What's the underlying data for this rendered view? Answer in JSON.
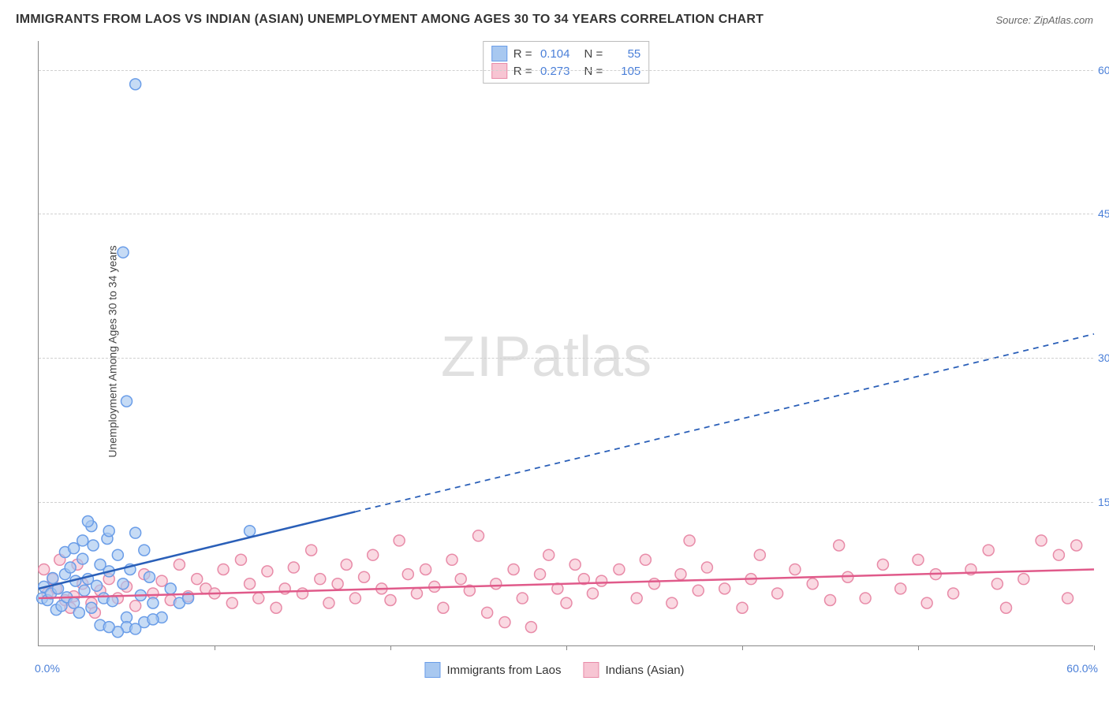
{
  "title": "IMMIGRANTS FROM LAOS VS INDIAN (ASIAN) UNEMPLOYMENT AMONG AGES 30 TO 34 YEARS CORRELATION CHART",
  "source": "Source: ZipAtlas.com",
  "ylabel": "Unemployment Among Ages 30 to 34 years",
  "watermark_a": "ZIP",
  "watermark_b": "atlas",
  "chart": {
    "type": "scatter",
    "xlim": [
      0,
      60
    ],
    "ylim": [
      0,
      63
    ],
    "xticks_major": [
      0,
      10,
      20,
      30,
      40,
      50,
      60
    ],
    "yticks": [
      15,
      30,
      45,
      60
    ],
    "xorigin_label": "0.0%",
    "xmax_label": "60.0%",
    "ytick_labels": [
      "15.0%",
      "30.0%",
      "45.0%",
      "60.0%"
    ],
    "grid_color": "#d0d0d0",
    "axis_color": "#888888",
    "background": "#ffffff",
    "marker_radius": 7,
    "marker_stroke_width": 1.5,
    "trend_line_width": 2.5,
    "series": [
      {
        "name": "Immigrants from Laos",
        "color_fill": "#a8c8f0",
        "color_stroke": "#6a9de8",
        "color_line": "#2a5fb8",
        "r": "0.104",
        "n": "55",
        "trend": {
          "x1": 0,
          "y1": 6.0,
          "x2_solid": 18,
          "y2_solid": 14.0,
          "x2": 60,
          "y2": 32.5
        },
        "points": [
          [
            0.2,
            5.0
          ],
          [
            0.3,
            6.2
          ],
          [
            0.5,
            4.8
          ],
          [
            0.7,
            5.5
          ],
          [
            0.8,
            7.1
          ],
          [
            1.0,
            3.8
          ],
          [
            1.1,
            6.0
          ],
          [
            1.3,
            4.2
          ],
          [
            1.5,
            7.5
          ],
          [
            1.6,
            5.1
          ],
          [
            1.8,
            8.2
          ],
          [
            2.0,
            4.5
          ],
          [
            2.1,
            6.8
          ],
          [
            2.3,
            3.5
          ],
          [
            2.5,
            9.1
          ],
          [
            2.6,
            5.8
          ],
          [
            2.8,
            7.0
          ],
          [
            3.0,
            4.0
          ],
          [
            3.1,
            10.5
          ],
          [
            3.3,
            6.3
          ],
          [
            3.5,
            8.5
          ],
          [
            3.7,
            5.0
          ],
          [
            3.9,
            11.2
          ],
          [
            4.0,
            7.8
          ],
          [
            4.2,
            4.7
          ],
          [
            4.5,
            9.5
          ],
          [
            4.8,
            6.5
          ],
          [
            5.0,
            3.0
          ],
          [
            5.2,
            8.0
          ],
          [
            5.5,
            11.8
          ],
          [
            5.8,
            5.3
          ],
          [
            6.0,
            10.0
          ],
          [
            6.3,
            7.2
          ],
          [
            6.5,
            4.5
          ],
          [
            3.0,
            12.5
          ],
          [
            2.5,
            11.0
          ],
          [
            4.0,
            12.0
          ],
          [
            1.5,
            9.8
          ],
          [
            2.0,
            10.2
          ],
          [
            2.8,
            13.0
          ],
          [
            5.0,
            2.0
          ],
          [
            6.0,
            2.5
          ],
          [
            7.0,
            3.0
          ],
          [
            4.5,
            1.5
          ],
          [
            3.5,
            2.2
          ],
          [
            5.5,
            1.8
          ],
          [
            6.5,
            2.8
          ],
          [
            4.0,
            2.0
          ],
          [
            4.8,
            41.0
          ],
          [
            5.0,
            25.5
          ],
          [
            5.5,
            58.5
          ],
          [
            12.0,
            12.0
          ],
          [
            8.0,
            4.5
          ],
          [
            7.5,
            6.0
          ],
          [
            8.5,
            5.0
          ]
        ]
      },
      {
        "name": "Indians (Asian)",
        "color_fill": "#f7c5d3",
        "color_stroke": "#e88ba8",
        "color_line": "#e05a8a",
        "r": "0.273",
        "n": "105",
        "trend": {
          "x1": 0,
          "y1": 5.0,
          "x2_solid": 60,
          "y2_solid": 8.0,
          "x2": 60,
          "y2": 8.0
        },
        "points": [
          [
            0.5,
            5.5
          ],
          [
            1.0,
            6.0
          ],
          [
            1.5,
            4.8
          ],
          [
            2.0,
            5.2
          ],
          [
            2.5,
            6.5
          ],
          [
            3.0,
            4.5
          ],
          [
            3.5,
            5.8
          ],
          [
            4.0,
            7.0
          ],
          [
            4.5,
            5.0
          ],
          [
            5.0,
            6.2
          ],
          [
            5.5,
            4.2
          ],
          [
            6.0,
            7.5
          ],
          [
            6.5,
            5.5
          ],
          [
            7.0,
            6.8
          ],
          [
            7.5,
            4.8
          ],
          [
            8.0,
            8.5
          ],
          [
            8.5,
            5.2
          ],
          [
            9.0,
            7.0
          ],
          [
            9.5,
            6.0
          ],
          [
            10.0,
            5.5
          ],
          [
            10.5,
            8.0
          ],
          [
            11.0,
            4.5
          ],
          [
            11.5,
            9.0
          ],
          [
            12.0,
            6.5
          ],
          [
            12.5,
            5.0
          ],
          [
            13.0,
            7.8
          ],
          [
            13.5,
            4.0
          ],
          [
            14.0,
            6.0
          ],
          [
            14.5,
            8.2
          ],
          [
            15.0,
            5.5
          ],
          [
            15.5,
            10.0
          ],
          [
            16.0,
            7.0
          ],
          [
            16.5,
            4.5
          ],
          [
            17.0,
            6.5
          ],
          [
            17.5,
            8.5
          ],
          [
            18.0,
            5.0
          ],
          [
            18.5,
            7.2
          ],
          [
            19.0,
            9.5
          ],
          [
            19.5,
            6.0
          ],
          [
            20.0,
            4.8
          ],
          [
            20.5,
            11.0
          ],
          [
            21.0,
            7.5
          ],
          [
            21.5,
            5.5
          ],
          [
            22.0,
            8.0
          ],
          [
            22.5,
            6.2
          ],
          [
            23.0,
            4.0
          ],
          [
            23.5,
            9.0
          ],
          [
            24.0,
            7.0
          ],
          [
            24.5,
            5.8
          ],
          [
            25.0,
            11.5
          ],
          [
            25.5,
            3.5
          ],
          [
            26.0,
            6.5
          ],
          [
            26.5,
            2.5
          ],
          [
            27.0,
            8.0
          ],
          [
            27.5,
            5.0
          ],
          [
            28.0,
            2.0
          ],
          [
            28.5,
            7.5
          ],
          [
            29.0,
            9.5
          ],
          [
            29.5,
            6.0
          ],
          [
            30.0,
            4.5
          ],
          [
            30.5,
            8.5
          ],
          [
            31.0,
            7.0
          ],
          [
            31.5,
            5.5
          ],
          [
            32.0,
            6.8
          ],
          [
            33.0,
            8.0
          ],
          [
            34.0,
            5.0
          ],
          [
            34.5,
            9.0
          ],
          [
            35.0,
            6.5
          ],
          [
            36.0,
            4.5
          ],
          [
            36.5,
            7.5
          ],
          [
            37.0,
            11.0
          ],
          [
            37.5,
            5.8
          ],
          [
            38.0,
            8.2
          ],
          [
            39.0,
            6.0
          ],
          [
            40.0,
            4.0
          ],
          [
            40.5,
            7.0
          ],
          [
            41.0,
            9.5
          ],
          [
            42.0,
            5.5
          ],
          [
            43.0,
            8.0
          ],
          [
            44.0,
            6.5
          ],
          [
            45.0,
            4.8
          ],
          [
            45.5,
            10.5
          ],
          [
            46.0,
            7.2
          ],
          [
            47.0,
            5.0
          ],
          [
            48.0,
            8.5
          ],
          [
            49.0,
            6.0
          ],
          [
            50.0,
            9.0
          ],
          [
            50.5,
            4.5
          ],
          [
            51.0,
            7.5
          ],
          [
            52.0,
            5.5
          ],
          [
            53.0,
            8.0
          ],
          [
            54.0,
            10.0
          ],
          [
            54.5,
            6.5
          ],
          [
            55.0,
            4.0
          ],
          [
            56.0,
            7.0
          ],
          [
            57.0,
            11.0
          ],
          [
            58.0,
            9.5
          ],
          [
            58.5,
            5.0
          ],
          [
            59.0,
            10.5
          ],
          [
            0.3,
            8.0
          ],
          [
            1.2,
            9.0
          ],
          [
            0.8,
            7.0
          ],
          [
            2.2,
            8.5
          ],
          [
            1.8,
            4.0
          ],
          [
            3.2,
            3.5
          ]
        ]
      }
    ]
  },
  "legend_bottom": [
    {
      "label": "Immigrants from Laos",
      "fill": "#a8c8f0",
      "stroke": "#6a9de8"
    },
    {
      "label": "Indians (Asian)",
      "fill": "#f7c5d3",
      "stroke": "#e88ba8"
    }
  ]
}
